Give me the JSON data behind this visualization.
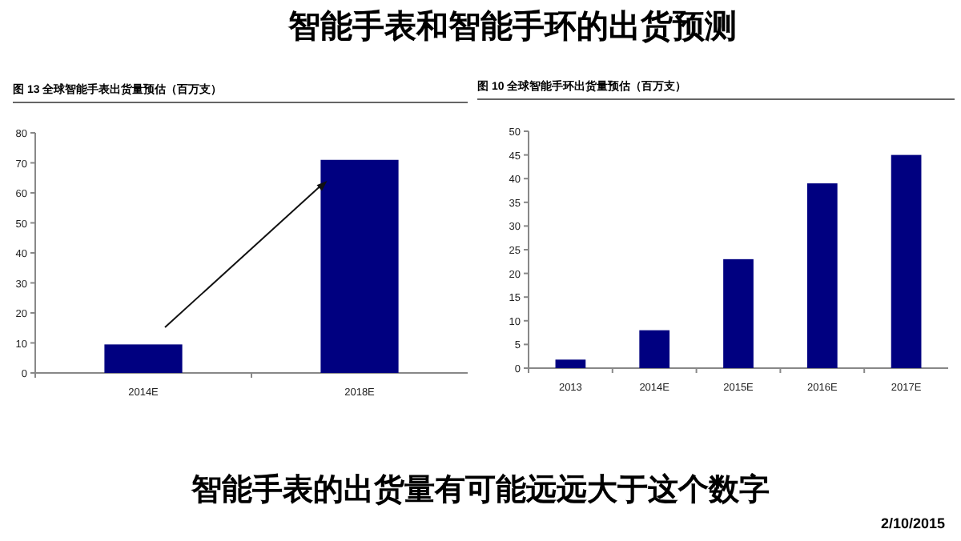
{
  "chart_data": [
    {
      "type": "bar",
      "title": "图 13 全球智能手表出货量预估（百万支）",
      "categories": [
        "2014E",
        "2018E"
      ],
      "values": [
        9.5,
        71
      ],
      "color": "#000080",
      "ylim": [
        0,
        80
      ],
      "yticks": [
        0,
        10,
        20,
        30,
        40,
        50,
        60,
        70,
        80
      ]
    },
    {
      "type": "bar",
      "title": "图 10 全球智能手环出货量预估（百万支）",
      "categories": [
        "2013",
        "2014E",
        "2015E",
        "2016E",
        "2017E"
      ],
      "values": [
        1.8,
        8,
        23,
        39,
        45
      ],
      "color": "#000080",
      "ylim": [
        0,
        50
      ],
      "yticks": [
        0,
        5,
        10,
        15,
        20,
        25,
        30,
        35,
        40,
        45,
        50
      ]
    },
    {
      "type": "other",
      "title": "智能手表和智能手环的出货预测",
      "annotations": [
        "智能手表的出货量有可能远远大于这个数字",
        "2/10/2015"
      ]
    }
  ]
}
